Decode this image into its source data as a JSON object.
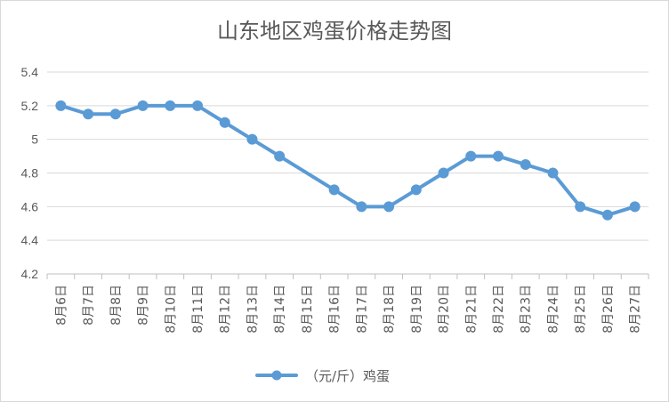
{
  "chart_data": {
    "type": "line",
    "title": "山东地区鸡蛋价格走势图",
    "categories": [
      "8月6日",
      "8月7日",
      "8月8日",
      "8月9日",
      "8月10日",
      "8月11日",
      "8月12日",
      "8月13日",
      "8月14日",
      "8月15日",
      "8月16日",
      "8月17日",
      "8月18日",
      "8月19日",
      "8月20日",
      "8月21日",
      "8月22日",
      "8月23日",
      "8月24日",
      "8月25日",
      "8月26日",
      "8月27日"
    ],
    "series": [
      {
        "name": "（元/斤）鸡蛋",
        "values": [
          5.2,
          5.15,
          5.15,
          5.2,
          5.2,
          5.2,
          5.1,
          5.0,
          4.9,
          null,
          4.7,
          4.6,
          4.6,
          4.7,
          4.8,
          4.9,
          4.9,
          4.85,
          4.8,
          4.6,
          4.55,
          4.6
        ],
        "color": "#5b9bd5"
      }
    ],
    "ylim": [
      4.2,
      5.4
    ],
    "yticks": [
      "4.2",
      "4.4",
      "4.6",
      "4.8",
      "5",
      "5.2",
      "5.4"
    ],
    "grid": true,
    "legend": "bottom",
    "xlabel": "",
    "ylabel": ""
  }
}
